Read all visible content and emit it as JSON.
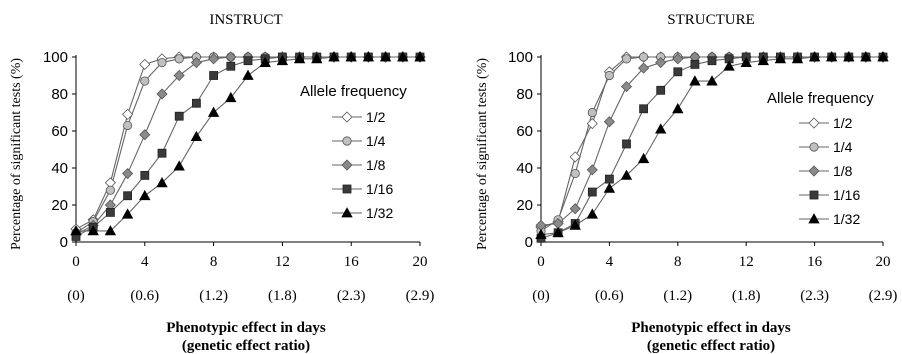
{
  "colors": {
    "axis": "#000000",
    "line": "#666666",
    "open_diamond_fill": "#ffffff",
    "circle_fill": "#c0c0c0",
    "diamond_fill": "#8a8a8a",
    "square_fill": "#3a3a3a",
    "triangle_fill": "#000000"
  },
  "shared": {
    "y_label": "Percentage of significant tests  (%)",
    "x_label_line1": "Phenotypic effect in days",
    "x_label_line2": "(genetic effect ratio)",
    "x_ticks": [
      "0",
      "4",
      "8",
      "12",
      "16",
      "20"
    ],
    "x_ratio_labels": [
      "(0)",
      "(0.6)",
      "(1.2)",
      "(1.8)",
      "(2.3)",
      "(2.9)"
    ],
    "y_ticks": [
      "0",
      "20",
      "40",
      "60",
      "80",
      "100"
    ],
    "legend_title": "Allele frequency"
  },
  "chart_data": [
    {
      "type": "line",
      "title": "INSTRUCT",
      "xlabel": "Phenotypic effect in days (genetic effect ratio)",
      "ylabel": "Percentage of significant tests  (%)",
      "xlim": [
        0,
        20
      ],
      "ylim": [
        0,
        100
      ],
      "grid": false,
      "legend_position": "right",
      "x": [
        0,
        1,
        2,
        3,
        4,
        5,
        6,
        7,
        8,
        9,
        10,
        11,
        12,
        13,
        14,
        15,
        16,
        17,
        18,
        19,
        20
      ],
      "series": [
        {
          "name": "1/2",
          "marker": "open-diamond",
          "values": [
            7,
            12,
            32,
            69,
            96,
            99,
            100,
            100,
            100,
            100,
            100,
            100,
            100,
            100,
            100,
            100,
            100,
            100,
            100,
            100,
            100
          ]
        },
        {
          "name": "1/4",
          "marker": "circle",
          "values": [
            5,
            11,
            28,
            63,
            87,
            97,
            99,
            100,
            100,
            100,
            100,
            100,
            100,
            100,
            100,
            100,
            100,
            100,
            100,
            100,
            100
          ]
        },
        {
          "name": "1/8",
          "marker": "diamond",
          "values": [
            4,
            9,
            20,
            37,
            58,
            80,
            90,
            97,
            99,
            100,
            100,
            100,
            100,
            100,
            100,
            100,
            100,
            100,
            100,
            100,
            100
          ]
        },
        {
          "name": "1/16",
          "marker": "square",
          "values": [
            3,
            8,
            16,
            25,
            36,
            48,
            68,
            75,
            90,
            95,
            98,
            99,
            100,
            100,
            100,
            100,
            100,
            100,
            100,
            100,
            100
          ]
        },
        {
          "name": "1/32",
          "marker": "triangle",
          "values": [
            6,
            6,
            6,
            15,
            25,
            32,
            41,
            57,
            70,
            78,
            90,
            97,
            98,
            99,
            99,
            100,
            100,
            100,
            100,
            100,
            100
          ]
        }
      ]
    },
    {
      "type": "line",
      "title": "STRUCTURE",
      "xlabel": "Phenotypic effect in days (genetic effect ratio)",
      "ylabel": "Percentage of significant tests  (%)",
      "xlim": [
        0,
        20
      ],
      "ylim": [
        0,
        100
      ],
      "grid": false,
      "legend_position": "right",
      "x": [
        0,
        1,
        2,
        3,
        4,
        5,
        6,
        7,
        8,
        9,
        10,
        11,
        12,
        13,
        14,
        15,
        16,
        17,
        18,
        19,
        20
      ],
      "series": [
        {
          "name": "1/2",
          "marker": "open-diamond",
          "values": [
            8,
            11,
            46,
            64,
            92,
            100,
            100,
            100,
            100,
            100,
            100,
            100,
            100,
            100,
            100,
            100,
            100,
            100,
            100,
            100,
            100
          ]
        },
        {
          "name": "1/4",
          "marker": "circle",
          "values": [
            6,
            12,
            37,
            70,
            90,
            99,
            100,
            100,
            100,
            100,
            100,
            100,
            100,
            100,
            100,
            100,
            100,
            100,
            100,
            100,
            100
          ]
        },
        {
          "name": "1/8",
          "marker": "diamond",
          "values": [
            9,
            10,
            18,
            39,
            65,
            84,
            94,
            97,
            99,
            100,
            100,
            100,
            100,
            100,
            100,
            100,
            100,
            100,
            100,
            100,
            100
          ]
        },
        {
          "name": "1/16",
          "marker": "square",
          "values": [
            2,
            5,
            10,
            27,
            34,
            53,
            72,
            82,
            92,
            96,
            98,
            99,
            100,
            100,
            100,
            100,
            100,
            100,
            100,
            100,
            100
          ]
        },
        {
          "name": "1/32",
          "marker": "triangle",
          "values": [
            4,
            5,
            9,
            15,
            29,
            36,
            45,
            61,
            72,
            87,
            87,
            95,
            97,
            98,
            99,
            99,
            100,
            100,
            100,
            100,
            100
          ]
        }
      ]
    }
  ]
}
